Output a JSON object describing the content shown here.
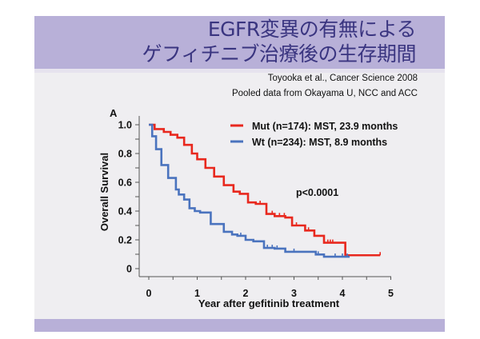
{
  "slide": {
    "title_line1": "EGFR変異の有無による",
    "title_line2": "ゲフィチニブ治療後の生存期間",
    "citation_line1": "Toyooka et al., Cancer Science 2008",
    "citation_line2": "Pooled data from Okayama U, NCC and ACC",
    "colors": {
      "band": "#b8b0d8",
      "title": "#3a3580",
      "body": "#efeef1"
    }
  },
  "chart_data": {
    "type": "line",
    "subtype": "kaplan-meier-step",
    "panel_label": "A",
    "title": "",
    "xlabel": "Year after gefitinib treatment",
    "ylabel": "Overall Survival",
    "xlim": [
      0,
      5
    ],
    "ylim": [
      0,
      1.0
    ],
    "xticks": [
      "0",
      "1",
      "2",
      "3",
      "4",
      "5"
    ],
    "xtick_values": [
      0,
      1,
      2,
      3,
      4,
      5
    ],
    "yticks": [
      "0",
      "0.2",
      "0.4",
      "0.6",
      "0.8",
      "1.0"
    ],
    "ytick_values": [
      0,
      0.2,
      0.4,
      0.6,
      0.8,
      1.0
    ],
    "grid": false,
    "legend_position": "top-right",
    "annotation": "p<0.0001",
    "series": [
      {
        "name": "Mut (n=174): MST, 23.9 months",
        "color": "#e8281e",
        "points": [
          [
            0,
            1.0
          ],
          [
            0.12,
            0.97
          ],
          [
            0.31,
            0.95
          ],
          [
            0.45,
            0.93
          ],
          [
            0.59,
            0.91
          ],
          [
            0.73,
            0.86
          ],
          [
            0.89,
            0.8
          ],
          [
            1.0,
            0.76
          ],
          [
            1.17,
            0.7
          ],
          [
            1.35,
            0.64
          ],
          [
            1.55,
            0.58
          ],
          [
            1.75,
            0.535
          ],
          [
            1.88,
            0.52
          ],
          [
            2.05,
            0.46
          ],
          [
            2.21,
            0.45
          ],
          [
            2.43,
            0.38
          ],
          [
            2.6,
            0.365
          ],
          [
            2.82,
            0.355
          ],
          [
            2.96,
            0.3
          ],
          [
            3.23,
            0.265
          ],
          [
            3.42,
            0.228
          ],
          [
            3.62,
            0.18
          ],
          [
            4.06,
            0.093
          ]
        ],
        "end_time": 4.78,
        "censored": [
          2.3,
          2.55,
          2.7,
          2.8,
          3.05,
          3.3,
          3.7,
          3.75,
          3.8,
          4.78
        ]
      },
      {
        "name": "Wt (n=234): MST, 8.9 months",
        "color": "#4a73be",
        "points": [
          [
            0,
            1.0
          ],
          [
            0.07,
            0.92
          ],
          [
            0.15,
            0.83
          ],
          [
            0.26,
            0.72
          ],
          [
            0.4,
            0.63
          ],
          [
            0.56,
            0.55
          ],
          [
            0.62,
            0.515
          ],
          [
            0.73,
            0.48
          ],
          [
            0.84,
            0.42
          ],
          [
            0.95,
            0.4
          ],
          [
            1.06,
            0.39
          ],
          [
            1.28,
            0.31
          ],
          [
            1.55,
            0.256
          ],
          [
            1.72,
            0.237
          ],
          [
            1.83,
            0.228
          ],
          [
            2.0,
            0.2
          ],
          [
            2.16,
            0.19
          ],
          [
            2.38,
            0.144
          ],
          [
            2.6,
            0.139
          ],
          [
            2.82,
            0.117
          ],
          [
            3.45,
            0.098
          ],
          [
            3.62,
            0.083
          ]
        ],
        "end_time": 4.15,
        "censored": [
          1.9,
          2.45,
          2.55,
          2.65,
          3.0,
          3.5,
          3.85,
          4.0,
          4.1
        ]
      }
    ]
  }
}
